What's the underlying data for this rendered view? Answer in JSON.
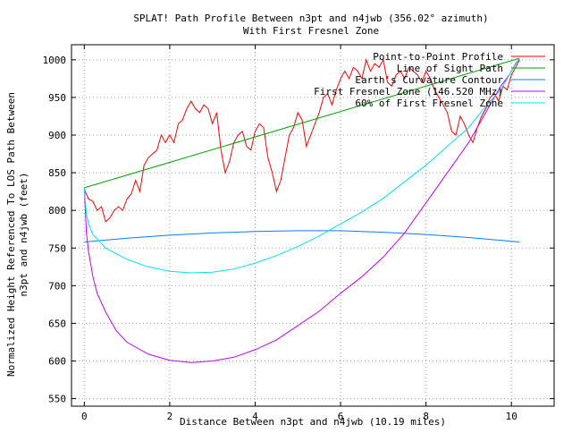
{
  "chart_data": {
    "type": "line",
    "title": "SPLAT! Path Profile Between n3pt and n4jwb (356.02° azimuth)",
    "subtitle": "With First Fresnel Zone",
    "xlabel": "Distance Between n3pt and n4jwb (10.19 miles)",
    "ylabel_line1": "Normalized Height Referenced To LOS Path Between",
    "ylabel_line2": "n3pt and n4jwb (feet)",
    "xlim": [
      -0.3,
      11.0
    ],
    "ylim": [
      540,
      1020
    ],
    "x_ticks": [
      0,
      2,
      4,
      6,
      8,
      10
    ],
    "y_ticks": [
      550,
      600,
      650,
      700,
      750,
      800,
      850,
      900,
      950,
      1000
    ],
    "grid": true,
    "legend_position": "top-right",
    "colors": {
      "profile": "#ff0000",
      "los": "#00a000",
      "earth": "#0080ff",
      "fresnel": "#c000ff",
      "fresnel60": "#00e0f0"
    },
    "series": [
      {
        "key": "profile",
        "name": "Point-to-Point Profile",
        "x": [
          0,
          0.1,
          0.2,
          0.3,
          0.4,
          0.5,
          0.6,
          0.7,
          0.8,
          0.9,
          1.0,
          1.1,
          1.2,
          1.3,
          1.4,
          1.5,
          1.6,
          1.7,
          1.8,
          1.9,
          2.0,
          2.1,
          2.2,
          2.3,
          2.4,
          2.5,
          2.6,
          2.7,
          2.8,
          2.9,
          3.0,
          3.1,
          3.2,
          3.3,
          3.4,
          3.5,
          3.6,
          3.7,
          3.8,
          3.9,
          4.0,
          4.1,
          4.2,
          4.3,
          4.4,
          4.5,
          4.6,
          4.7,
          4.8,
          4.9,
          5.0,
          5.1,
          5.2,
          5.3,
          5.4,
          5.5,
          5.6,
          5.7,
          5.8,
          5.9,
          6.0,
          6.1,
          6.2,
          6.3,
          6.4,
          6.5,
          6.6,
          6.7,
          6.8,
          6.9,
          7.0,
          7.1,
          7.2,
          7.3,
          7.4,
          7.5,
          7.6,
          7.7,
          7.8,
          7.9,
          8.0,
          8.1,
          8.2,
          8.3,
          8.4,
          8.5,
          8.6,
          8.7,
          8.8,
          8.9,
          9.0,
          9.1,
          9.2,
          9.3,
          9.4,
          9.5,
          9.6,
          9.7,
          9.8,
          9.9,
          10.0,
          10.1,
          10.19
        ],
        "y": [
          828,
          815,
          812,
          800,
          805,
          785,
          790,
          800,
          805,
          800,
          815,
          822,
          840,
          825,
          860,
          870,
          875,
          880,
          900,
          890,
          900,
          890,
          915,
          920,
          935,
          945,
          935,
          930,
          940,
          935,
          915,
          930,
          880,
          850,
          865,
          890,
          900,
          905,
          885,
          880,
          905,
          915,
          910,
          870,
          850,
          825,
          840,
          870,
          900,
          910,
          930,
          920,
          885,
          900,
          915,
          930,
          950,
          955,
          940,
          960,
          975,
          985,
          975,
          990,
          985,
          975,
          1000,
          985,
          995,
          990,
          1000,
          970,
          965,
          980,
          985,
          975,
          990,
          985,
          980,
          970,
          985,
          975,
          960,
          950,
          940,
          930,
          905,
          900,
          925,
          915,
          900,
          890,
          910,
          925,
          935,
          950,
          955,
          945,
          965,
          960,
          980,
          990,
          1000
        ]
      },
      {
        "key": "los",
        "name": "Line of Sight Path",
        "x": [
          0,
          10.19
        ],
        "y": [
          830,
          1002
        ]
      },
      {
        "key": "earth",
        "name": "Earth's Curvature Contour",
        "x": [
          0,
          1,
          2,
          3,
          4,
          5,
          6,
          7,
          8,
          9,
          10.19
        ],
        "y": [
          758,
          763,
          767,
          770,
          772,
          773,
          773,
          771,
          768,
          764,
          758
        ]
      },
      {
        "key": "fresnel",
        "name": "First Fresnel Zone (146.520 MHz)",
        "x": [
          0,
          0.05,
          0.1,
          0.2,
          0.3,
          0.5,
          0.75,
          1.0,
          1.5,
          2.0,
          2.5,
          3.0,
          3.5,
          4.0,
          4.5,
          5.0,
          5.5,
          6.0,
          6.5,
          7.0,
          7.5,
          8.0,
          8.5,
          9.0,
          9.5,
          9.75,
          9.95,
          10.1,
          10.19
        ],
        "y": [
          830,
          770,
          745,
          712,
          690,
          665,
          640,
          625,
          609,
          601,
          598,
          600,
          605,
          615,
          628,
          647,
          666,
          690,
          712,
          738,
          770,
          810,
          850,
          890,
          940,
          965,
          980,
          995,
          1002
        ]
      },
      {
        "key": "fresnel60",
        "name": "60% of First Fresnel Zone",
        "x": [
          0,
          0.05,
          0.1,
          0.2,
          0.5,
          1.0,
          1.5,
          2.0,
          2.5,
          3.0,
          3.5,
          4.0,
          4.5,
          5.0,
          5.5,
          6.0,
          6.5,
          7.0,
          7.5,
          8.0,
          8.5,
          9.0,
          9.5,
          9.75,
          10.0,
          10.19
        ],
        "y": [
          830,
          795,
          782,
          768,
          750,
          735,
          725,
          719,
          717,
          718,
          722,
          730,
          740,
          752,
          766,
          782,
          798,
          816,
          838,
          860,
          885,
          910,
          945,
          960,
          985,
          1002
        ]
      }
    ]
  }
}
